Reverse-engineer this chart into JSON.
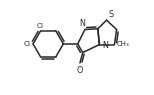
{
  "bg_color": "#ffffff",
  "line_color": "#2a2a2a",
  "line_width": 1.1,
  "figsize": [
    1.54,
    0.95
  ],
  "dpi": 100,
  "xlim": [
    0,
    10
  ],
  "ylim": [
    0,
    6.5
  ]
}
